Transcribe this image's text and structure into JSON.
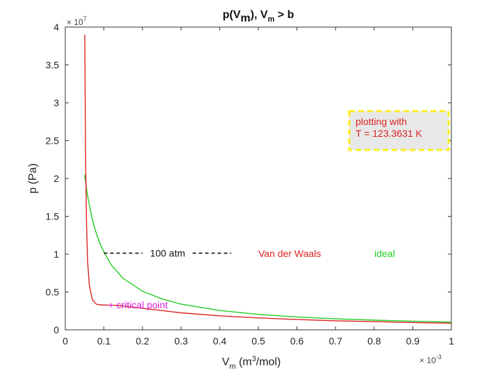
{
  "chart_data": {
    "type": "line",
    "title": "p(V_m), V_m > b",
    "title_parts": {
      "p_open": "p(V",
      "sub1": "m",
      "mid": "), V",
      "sub2": "m",
      "end": " > b"
    },
    "xlabel": "V_m (m^3/mol)",
    "xlabel_parts": {
      "v": "V",
      "sub": "m",
      "mid": " (m",
      "sup": "3",
      "end": "/mol)"
    },
    "ylabel": "p (Pa)",
    "x_multiplier": {
      "base": "× 10",
      "exp": "-3"
    },
    "y_multiplier": {
      "base": "× 10",
      "exp": "7"
    },
    "xlim": [
      0,
      0.001
    ],
    "ylim": [
      0,
      40000000
    ],
    "xticks": [
      "0",
      "0.1",
      "0.2",
      "0.3",
      "0.4",
      "0.5",
      "0.6",
      "0.7",
      "0.8",
      "0.9",
      "1"
    ],
    "yticks": [
      "0",
      "0.5",
      "1",
      "1.5",
      "2",
      "2.5",
      "3",
      "3.5",
      "4"
    ],
    "grid": false,
    "series": [
      {
        "name": "Van der Waals",
        "color": "#dd2222",
        "x": [
          5.05e-05,
          5.1e-05,
          5.2e-05,
          5.3e-05,
          5.5e-05,
          5.8e-05,
          6.2e-05,
          7e-05,
          8e-05,
          9e-05,
          0.0001,
          0.00011,
          0.00012,
          0.00013,
          0.00015,
          0.0002,
          0.00025,
          0.0003,
          0.0004,
          0.0005,
          0.0006,
          0.0007,
          0.0008,
          0.0009,
          0.001
        ],
        "y": [
          39000000,
          34000000,
          27000000,
          21000000,
          14000000,
          9000000,
          6000000,
          4000000,
          3400000,
          3300000,
          3280000,
          3270000,
          3260000,
          3240000,
          3150000,
          2850000,
          2550000,
          2250000,
          1850000,
          1580000,
          1370000,
          1200000,
          1080000,
          970000,
          880000
        ]
      },
      {
        "name": "ideal",
        "color": "#22cc22",
        "x": [
          5e-05,
          5.5e-05,
          6e-05,
          7e-05,
          8e-05,
          9e-05,
          0.0001,
          0.00012,
          0.00015,
          0.0002,
          0.00025,
          0.0003,
          0.0004,
          0.0005,
          0.0006,
          0.0007,
          0.0008,
          0.0009,
          0.001
        ],
        "y": [
          20500000,
          18600000,
          17100000,
          14600000,
          12800000,
          11400000,
          10300000,
          8500000,
          6800000,
          5100000,
          4100000,
          3400000,
          2560000,
          2050000,
          1710000,
          1460000,
          1280000,
          1140000,
          1030000
        ]
      }
    ],
    "reference_line": {
      "label": "100 atm",
      "y": 10132500,
      "x_start": 0.0001,
      "x_end": 0.00043,
      "color": "#111111"
    },
    "critical_point": {
      "label": "+ critical point",
      "x": 0.00012,
      "y": 3300000,
      "color": "#dd22dd"
    },
    "legend": {
      "placement": "middle-right",
      "entries": [
        {
          "label": "Van der Waals",
          "color": "#dd2222"
        },
        {
          "label": "ideal",
          "color": "#22cc22"
        }
      ]
    },
    "annotation": {
      "lines": [
        "plotting with",
        "T = 123.3631 K"
      ],
      "text_color": "#dd2222",
      "background": "#e8e8e8",
      "border_color": "#ffee22",
      "placement": "upper-right"
    }
  }
}
